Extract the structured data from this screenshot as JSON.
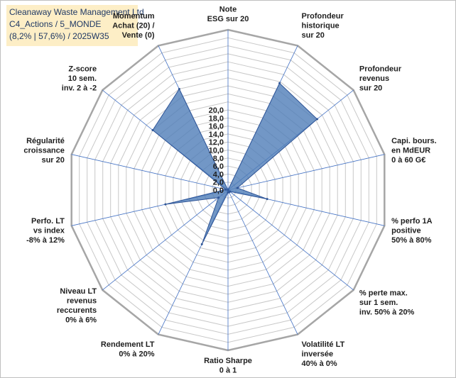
{
  "title": {
    "line1": "Cleanaway Waste Management Ltd",
    "line2": "C4_Actions / 5_MONDE",
    "line3": "(8,2% | 57,6%) / 2025W35"
  },
  "colors": {
    "fill": "#4f7db8",
    "stroke": "#2f5597",
    "grid": "#c8c8c8",
    "outer_ring": "#a6a6a6",
    "spoke": "#4472c4",
    "title_bg": "#fdeec6",
    "title_text": "#1f3864"
  },
  "chart_data": {
    "type": "radar",
    "rlim": [
      0,
      20
    ],
    "tick_step": 1,
    "tick_labels": [
      "0,0",
      "2,0",
      "4,0",
      "6,0",
      "8,0",
      "10,0",
      "12,0",
      "14,0",
      "16,0",
      "18,0",
      "20,0"
    ],
    "grid": true,
    "axes": [
      [
        "Note",
        "ESG sur 20"
      ],
      [
        "Profondeur",
        "historique",
        "sur 20"
      ],
      [
        "Profondeur",
        "revenus",
        "sur 20"
      ],
      [
        "Capi. bours.",
        "en MdEUR",
        "0 à 60 G€"
      ],
      [
        "% perfo 1A",
        "positive",
        "50% à 80%"
      ],
      [
        "% perte max.",
        "sur 1 sem.",
        "inv. 50% à 20%"
      ],
      [
        "Volatilité LT",
        "inversée",
        "40% à 0%"
      ],
      [
        "Ratio Sharpe",
        "0 à 1"
      ],
      [
        "Rendement LT",
        "0% à 20%"
      ],
      [
        "Niveau LT",
        "revenus",
        "reccurents",
        "0% à 6%"
      ],
      [
        "Perfo. LT",
        "vs index",
        "-8% à 12%"
      ],
      [
        "Régularité",
        "croissance",
        "sur 20"
      ],
      [
        "Z-score",
        "10 sem.",
        "inv. 2 à -2"
      ],
      [
        "Momentum",
        "Achat (20) /",
        "Vente (0)"
      ]
    ],
    "values": [
      0,
      14.8,
      14.2,
      1.2,
      5.0,
      0.3,
      0.3,
      0.3,
      7.5,
      1.5,
      8.0,
      0.3,
      12.0,
      14.0
    ]
  }
}
